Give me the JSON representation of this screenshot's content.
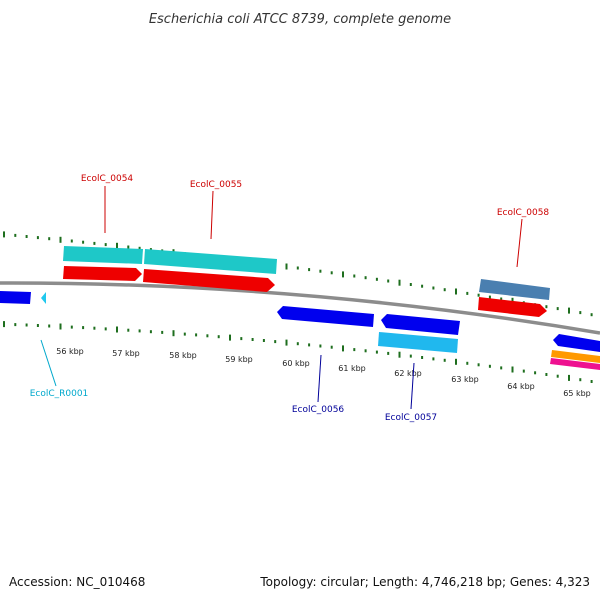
{
  "title": "Escherichia coli ATCC 8739, complete genome",
  "accession": "Accession: NC_010468",
  "topology": "Topology: circular; Length: 4,746,218 bp; Genes: 4,323",
  "colors": {
    "backbone": "#8c8c8c",
    "tick": "#1e6e1e",
    "cds_dark_blue": "#0000ee",
    "cds_cyan": "#1ec8c8",
    "cds_red": "#ee0000",
    "cds_steel": "#4a7fb0",
    "cds_light_blue": "#20b8ee",
    "cds_orange": "#ff9900",
    "cds_magenta": "#ee1190",
    "label_red": "#cc0000",
    "label_navy": "#000099",
    "label_cyan": "#00a8cc"
  },
  "scale_labels": [
    "56 kbp",
    "57 kbp",
    "58 kbp",
    "59 kbp",
    "60 kbp",
    "61 kbp",
    "62 kbp",
    "63 kbp",
    "64 kbp",
    "65 kbp"
  ],
  "gene_labels": [
    "EcolC_0054",
    "EcolC_0055",
    "EcolC_0058",
    "EcolC_R0001",
    "EcolC_0056",
    "EcolC_0057"
  ]
}
